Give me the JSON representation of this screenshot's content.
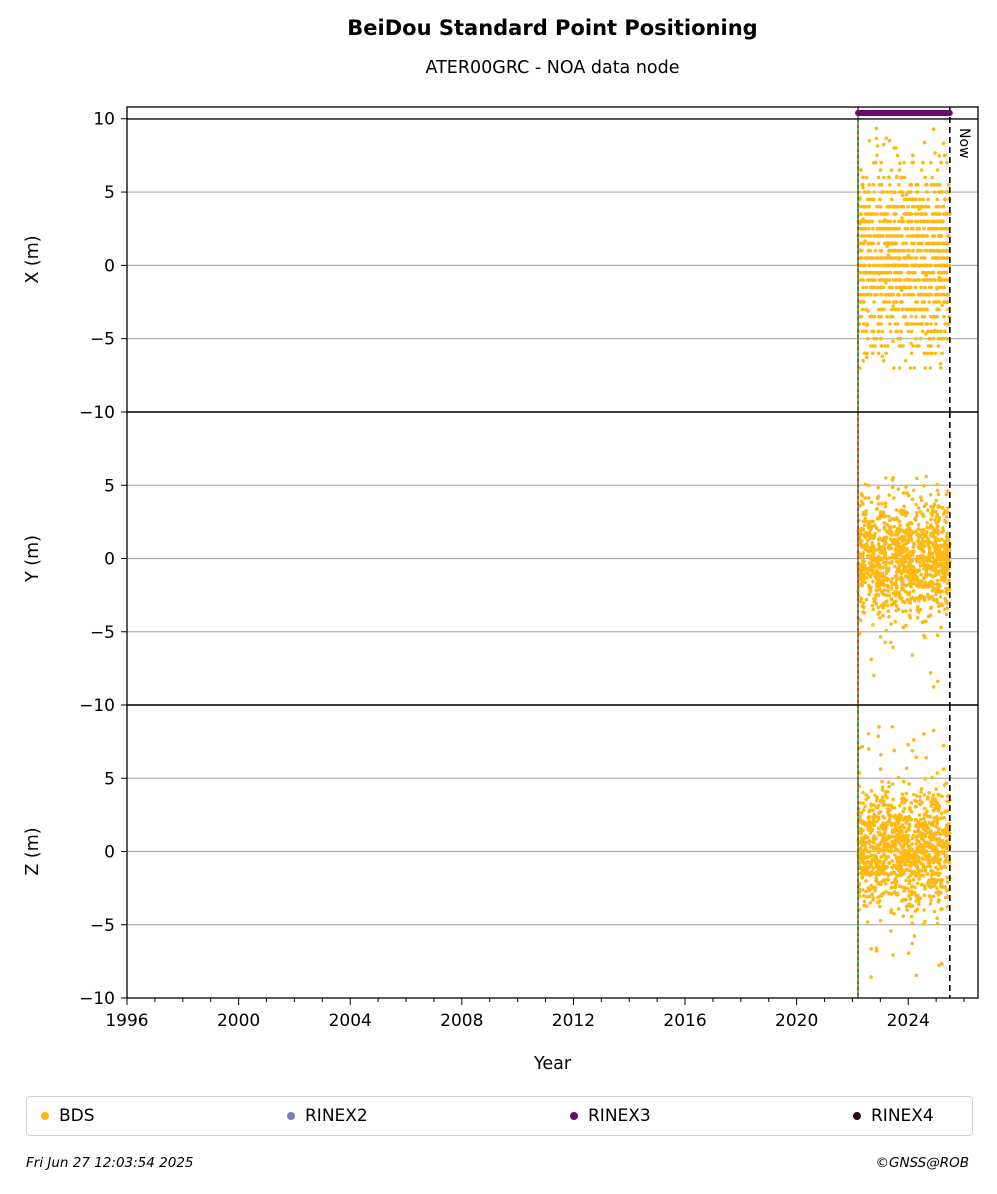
{
  "title": "BeiDou Standard Point Positioning",
  "subtitle": "ATER00GRC - NOA data node",
  "footer": {
    "date": "Fri Jun 27 12:03:54 2025",
    "credit": "©GNSS@ROB"
  },
  "legend": [
    {
      "label": "BDS",
      "color": "#fdb913"
    },
    {
      "label": "RINEX2",
      "color": "#7b7bc6"
    },
    {
      "label": "RINEX3",
      "color": "#6a0a6a"
    },
    {
      "label": "RINEX4",
      "color": "#2a0b1f"
    }
  ],
  "chart_data": {
    "type": "scatter",
    "xlabel": "Year",
    "xlim": [
      1996,
      2026.5
    ],
    "x_ticks": [
      1996,
      2000,
      2004,
      2008,
      2012,
      2016,
      2020,
      2024
    ],
    "data_start": 2022.2,
    "data_end": 2025.49,
    "now": 2025.49,
    "now_label": "Now",
    "rinex3_span": [
      2022.2,
      2025.49
    ],
    "grid": true,
    "colors": {
      "bds": "#fdb913",
      "rinex3": "#6a0a6a",
      "start_line_red": "#d62728",
      "start_line_green": "#2ca02c"
    },
    "panels": [
      {
        "ylabel": "X (m)",
        "ylim": [
          -10,
          10.8
        ],
        "yticks": [
          10,
          5,
          0,
          -5,
          -10
        ],
        "spread": {
          "center": 0.5,
          "min": -7.0,
          "max": 9.8
        }
      },
      {
        "ylabel": "Y (m)",
        "ylim": [
          -10,
          10
        ],
        "yticks": [
          5,
          0,
          -5,
          -10
        ],
        "spread": {
          "center": 0.0,
          "min": -8.8,
          "max": 5.6
        }
      },
      {
        "ylabel": "Z (m)",
        "ylim": [
          -10,
          10
        ],
        "yticks": [
          5,
          0,
          -5,
          -10
        ],
        "spread": {
          "center": 0.3,
          "min": -9.0,
          "max": 8.8
        }
      }
    ]
  }
}
